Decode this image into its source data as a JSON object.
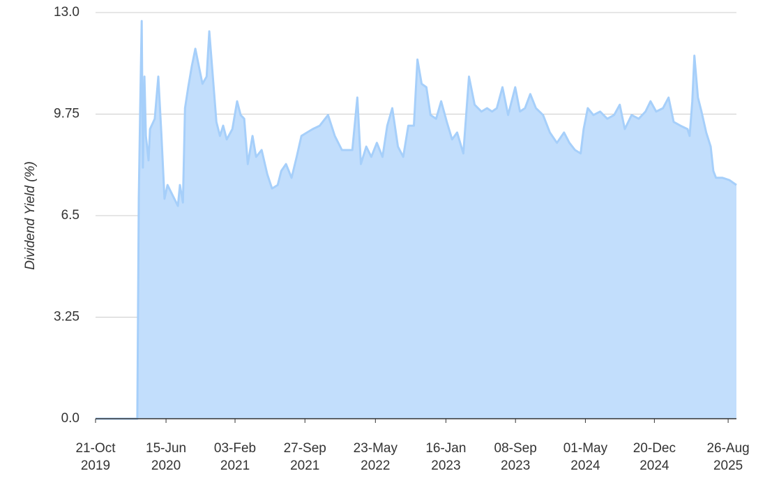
{
  "chart_data": {
    "type": "area",
    "y_label": "Dividend Yield (%)",
    "color": "#a6cffa",
    "fill": "#c2defc",
    "grid": true,
    "ylim": [
      0,
      13
    ],
    "yticks": [
      {
        "value": 0,
        "label": "0.0"
      },
      3.25,
      6.5,
      9.75,
      {
        "value": 13,
        "label": "13.0"
      }
    ],
    "xlim": [
      "2019-10-21",
      "2025-09-23"
    ],
    "xticks": [
      {
        "value": "2019-10-21",
        "label": "21-Oct 2019"
      },
      {
        "value": "2020-06-15",
        "label": "15-Jun 2020"
      },
      {
        "value": "2021-02-03",
        "label": "03-Feb 2021"
      },
      {
        "value": "2021-09-27",
        "label": "27-Sep 2021"
      },
      {
        "value": "2022-05-23",
        "label": "23-May 2022"
      },
      {
        "value": "2023-01-16",
        "label": "16-Jan 2023"
      },
      {
        "value": "2023-09-08",
        "label": "08-Sep 2023"
      },
      {
        "value": "2024-05-01",
        "label": "01-May 2024"
      },
      {
        "value": "2024-12-20",
        "label": "20-Dec 2024"
      },
      {
        "value": "2025-08-26",
        "label": "26-Aug 2025"
      }
    ],
    "x": [
      "2019-10-21",
      "2020-03-10",
      "2020-03-15",
      "2020-03-20",
      "2020-03-25",
      "2020-03-29",
      "2020-04-03",
      "2020-04-08",
      "2020-04-17",
      "2020-04-22",
      "2020-05-08",
      "2020-05-20",
      "2020-05-30",
      "2020-06-10",
      "2020-06-20",
      "2020-07-13",
      "2020-07-25",
      "2020-08-01",
      "2020-08-11",
      "2020-08-18",
      "2020-08-29",
      "2020-09-10",
      "2020-09-22",
      "2020-10-04",
      "2020-10-16",
      "2020-10-30",
      "2020-11-08",
      "2020-11-20",
      "2020-12-02",
      "2020-12-14",
      "2020-12-25",
      "2021-01-06",
      "2021-01-25",
      "2021-02-10",
      "2021-02-22",
      "2021-03-06",
      "2021-03-18",
      "2021-04-03",
      "2021-04-15",
      "2021-05-04",
      "2021-05-23",
      "2021-06-08",
      "2021-06-27",
      "2021-07-09",
      "2021-07-25",
      "2021-08-13",
      "2021-08-30",
      "2021-09-15",
      "2021-10-04",
      "2021-10-23",
      "2021-11-16",
      "2021-12-14",
      "2022-01-06",
      "2022-01-30",
      "2022-03-06",
      "2022-03-23",
      "2022-04-04",
      "2022-04-22",
      "2022-05-09",
      "2022-05-28",
      "2022-06-16",
      "2022-07-02",
      "2022-07-19",
      "2022-08-07",
      "2022-08-25",
      "2022-09-11",
      "2022-09-30",
      "2022-10-12",
      "2022-10-26",
      "2022-11-11",
      "2022-11-25",
      "2022-12-14",
      "2022-12-31",
      "2023-01-19",
      "2023-02-06",
      "2023-02-23",
      "2023-03-16",
      "2023-04-04",
      "2023-04-23",
      "2023-05-16",
      "2023-06-04",
      "2023-06-21",
      "2023-07-07",
      "2023-07-26",
      "2023-08-14",
      "2023-09-07",
      "2023-09-23",
      "2023-10-10",
      "2023-10-28",
      "2023-11-16",
      "2023-12-10",
      "2024-01-02",
      "2024-01-26",
      "2024-02-19",
      "2024-03-08",
      "2024-03-27",
      "2024-04-15",
      "2024-04-25",
      "2024-05-09",
      "2024-05-28",
      "2024-06-20",
      "2024-07-14",
      "2024-08-06",
      "2024-08-25",
      "2024-09-11",
      "2024-10-04",
      "2024-10-28",
      "2024-11-20",
      "2024-12-07",
      "2024-12-26",
      "2025-01-18",
      "2025-02-06",
      "2025-02-23",
      "2025-03-18",
      "2025-04-11",
      "2025-04-18",
      "2025-04-27",
      "2025-05-04",
      "2025-05-16",
      "2025-05-28",
      "2025-06-13",
      "2025-06-28",
      "2025-07-07",
      "2025-07-16",
      "2025-08-07",
      "2025-08-30",
      "2025-09-23"
    ],
    "values": [
      0,
      0,
      7.04,
      10.05,
      12.73,
      8.04,
      10.95,
      9.05,
      8.27,
      9.27,
      9.6,
      10.95,
      9.16,
      7.04,
      7.48,
      7.04,
      6.81,
      7.48,
      6.92,
      9.94,
      10.61,
      11.28,
      11.84,
      11.28,
      10.72,
      10.95,
      12.4,
      10.95,
      9.5,
      9.05,
      9.38,
      8.94,
      9.27,
      10.16,
      9.72,
      9.6,
      8.15,
      9.05,
      8.38,
      8.6,
      7.82,
      7.37,
      7.48,
      7.93,
      8.15,
      7.71,
      8.38,
      9.05,
      9.16,
      9.27,
      9.38,
      9.72,
      9.05,
      8.6,
      8.6,
      10.28,
      8.15,
      8.71,
      8.38,
      8.83,
      8.38,
      9.38,
      9.94,
      8.71,
      8.38,
      9.38,
      9.38,
      11.5,
      10.72,
      10.61,
      9.72,
      9.6,
      10.16,
      9.5,
      8.94,
      9.16,
      8.49,
      10.95,
      10.05,
      9.83,
      9.94,
      9.83,
      9.94,
      10.61,
      9.72,
      10.61,
      9.83,
      9.94,
      10.39,
      9.94,
      9.72,
      9.16,
      8.83,
      9.16,
      8.83,
      8.6,
      8.49,
      9.27,
      9.94,
      9.72,
      9.83,
      9.6,
      9.72,
      10.05,
      9.27,
      9.72,
      9.6,
      9.83,
      10.16,
      9.83,
      9.94,
      10.28,
      9.5,
      9.38,
      9.27,
      9.05,
      10.16,
      11.62,
      10.28,
      9.83,
      9.16,
      8.71,
      7.93,
      7.71,
      7.71,
      7.64,
      7.48
    ]
  }
}
